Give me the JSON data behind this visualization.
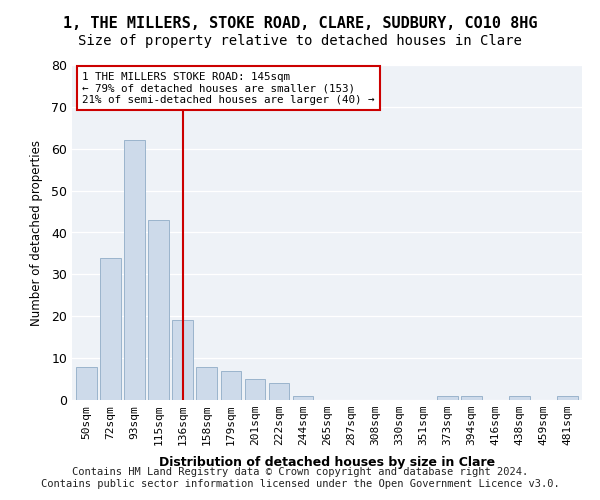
{
  "title": "1, THE MILLERS, STOKE ROAD, CLARE, SUDBURY, CO10 8HG",
  "subtitle": "Size of property relative to detached houses in Clare",
  "xlabel": "Distribution of detached houses by size in Clare",
  "ylabel": "Number of detached properties",
  "categories": [
    "50sqm",
    "72sqm",
    "93sqm",
    "115sqm",
    "136sqm",
    "158sqm",
    "179sqm",
    "201sqm",
    "222sqm",
    "244sqm",
    "265sqm",
    "287sqm",
    "308sqm",
    "330sqm",
    "351sqm",
    "373sqm",
    "394sqm",
    "416sqm",
    "438sqm",
    "459sqm",
    "481sqm"
  ],
  "values": [
    8,
    34,
    62,
    43,
    19,
    8,
    7,
    5,
    4,
    1,
    0,
    0,
    0,
    0,
    0,
    1,
    1,
    0,
    1,
    0,
    1
  ],
  "bar_color": "#cddaea",
  "bar_edge_color": "#9ab4cc",
  "vline_x": 4.0,
  "vline_color": "#cc0000",
  "annotation_line1": "1 THE MILLERS STOKE ROAD: 145sqm",
  "annotation_line2": "← 79% of detached houses are smaller (153)",
  "annotation_line3": "21% of semi-detached houses are larger (40) →",
  "ylim": [
    0,
    80
  ],
  "yticks": [
    0,
    10,
    20,
    30,
    40,
    50,
    60,
    70,
    80
  ],
  "plot_bg_color": "#eef2f7",
  "title_fontsize": 11,
  "subtitle_fontsize": 10,
  "footer_text1": "Contains HM Land Registry data © Crown copyright and database right 2024.",
  "footer_text2": "Contains public sector information licensed under the Open Government Licence v3.0."
}
